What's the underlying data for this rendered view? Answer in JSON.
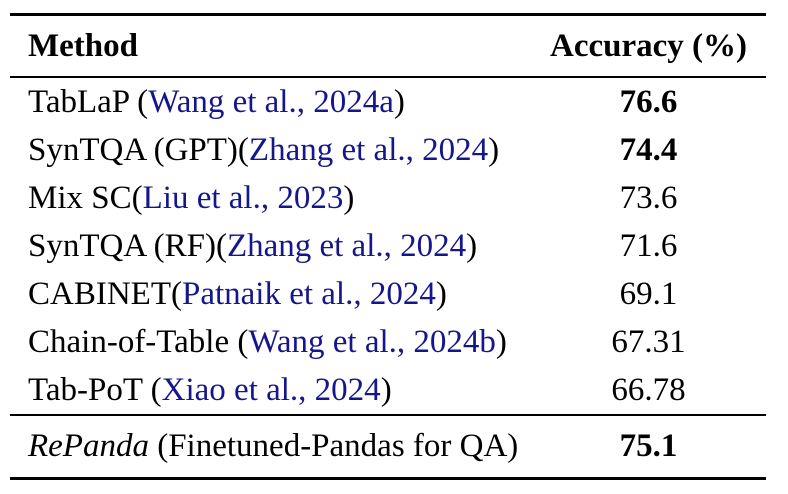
{
  "table": {
    "header": {
      "method_label": "Method",
      "accuracy_label": "Accuracy (%)"
    },
    "rows": [
      {
        "method_segments": [
          {
            "text": "TabLaP (",
            "kind": "plain"
          },
          {
            "text": "Wang et al., 2024a",
            "kind": "citation"
          },
          {
            "text": ")",
            "kind": "plain"
          }
        ],
        "accuracy": "76.6",
        "accuracy_bold": true
      },
      {
        "method_segments": [
          {
            "text": "SynTQA (GPT)(",
            "kind": "plain"
          },
          {
            "text": "Zhang et al., 2024",
            "kind": "citation"
          },
          {
            "text": ")",
            "kind": "plain"
          }
        ],
        "accuracy": "74.4",
        "accuracy_bold": true
      },
      {
        "method_segments": [
          {
            "text": "Mix SC(",
            "kind": "plain"
          },
          {
            "text": "Liu et al., 2023",
            "kind": "citation"
          },
          {
            "text": ")",
            "kind": "plain"
          }
        ],
        "accuracy": "73.6",
        "accuracy_bold": false
      },
      {
        "method_segments": [
          {
            "text": "SynTQA (RF)(",
            "kind": "plain"
          },
          {
            "text": "Zhang et al., 2024",
            "kind": "citation"
          },
          {
            "text": ")",
            "kind": "plain"
          }
        ],
        "accuracy": "71.6",
        "accuracy_bold": false
      },
      {
        "method_segments": [
          {
            "text": "CABINET(",
            "kind": "plain"
          },
          {
            "text": "Patnaik et al., 2024",
            "kind": "citation"
          },
          {
            "text": ")",
            "kind": "plain"
          }
        ],
        "accuracy": "69.1",
        "accuracy_bold": false
      },
      {
        "method_segments": [
          {
            "text": "Chain-of-Table (",
            "kind": "plain"
          },
          {
            "text": "Wang et al., 2024b",
            "kind": "citation"
          },
          {
            "text": ")",
            "kind": "plain"
          }
        ],
        "accuracy": "67.31",
        "accuracy_bold": false
      },
      {
        "method_segments": [
          {
            "text": "Tab-PoT (",
            "kind": "plain"
          },
          {
            "text": "Xiao et al., 2024",
            "kind": "citation"
          },
          {
            "text": ")",
            "kind": "plain"
          }
        ],
        "accuracy": "66.78",
        "accuracy_bold": false
      }
    ],
    "footer": {
      "method_segments": [
        {
          "text": "RePanda",
          "kind": "italic"
        },
        {
          "text": " (Finetuned-Pandas for QA)",
          "kind": "plain"
        }
      ],
      "accuracy": "75.1",
      "accuracy_bold": true
    },
    "colors": {
      "citation": "#16168c",
      "text": "#000000",
      "rule": "#000000",
      "background": "#ffffff"
    }
  }
}
